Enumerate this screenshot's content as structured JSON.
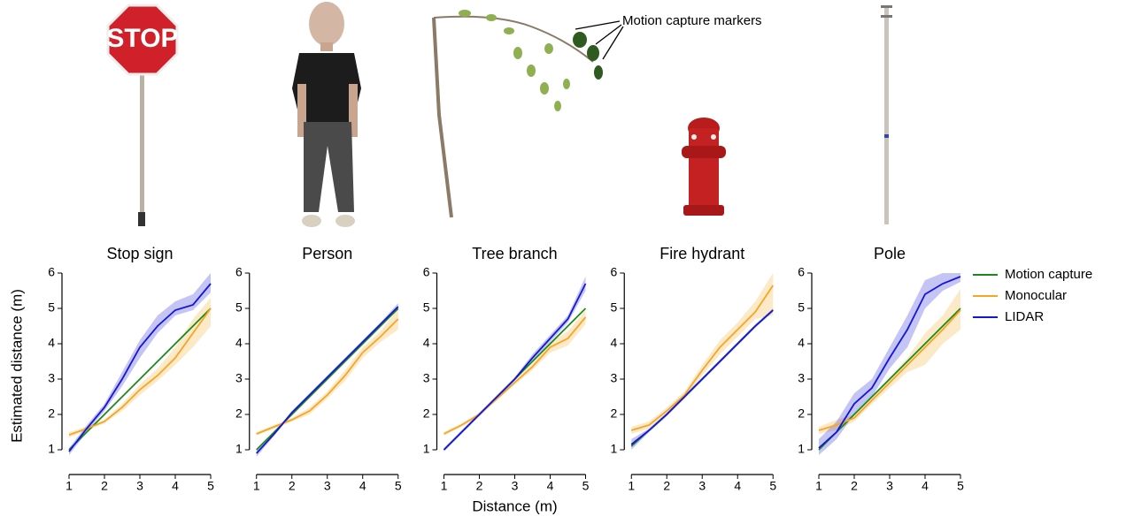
{
  "images": {
    "stop_sign_label": "STOP",
    "annotation": "Motion capture markers"
  },
  "chart_data": [
    {
      "type": "line",
      "title": "Stop sign",
      "y_label": "Estimated distance (m)",
      "x": [
        1,
        1.5,
        2,
        2.5,
        3,
        3.5,
        4,
        4.5,
        5
      ],
      "xlim": [
        1,
        5
      ],
      "ylim": [
        1,
        6
      ],
      "xticks": [
        1,
        2,
        3,
        4,
        5
      ],
      "yticks": [
        1,
        2,
        3,
        4,
        5,
        6
      ],
      "series": [
        {
          "name": "Motion capture",
          "color": "#1a8a1a",
          "values": [
            1,
            1.5,
            2,
            2.5,
            3,
            3.5,
            4,
            4.5,
            5
          ]
        },
        {
          "name": "Monocular",
          "color": "#f5a623",
          "values": [
            1.42,
            1.6,
            1.8,
            2.2,
            2.7,
            3.1,
            3.6,
            4.3,
            5.0
          ],
          "lower": [
            1.35,
            1.55,
            1.75,
            2.1,
            2.55,
            2.95,
            3.4,
            3.9,
            4.5
          ],
          "upper": [
            1.5,
            1.65,
            1.85,
            2.3,
            2.85,
            3.3,
            3.9,
            4.7,
            5.3
          ]
        },
        {
          "name": "LIDAR",
          "color": "#1515d6",
          "values": [
            0.95,
            1.6,
            2.2,
            3.0,
            3.9,
            4.5,
            4.95,
            5.1,
            5.7
          ],
          "lower": [
            0.85,
            1.5,
            2.1,
            2.8,
            3.6,
            4.3,
            4.8,
            4.95,
            5.45
          ],
          "upper": [
            1.05,
            1.7,
            2.3,
            3.2,
            4.1,
            4.8,
            5.2,
            5.4,
            6.0
          ]
        }
      ]
    },
    {
      "type": "line",
      "title": "Person",
      "x": [
        1,
        1.5,
        2,
        2.5,
        3,
        3.5,
        4,
        4.5,
        5
      ],
      "xlim": [
        1,
        5
      ],
      "ylim": [
        1,
        6
      ],
      "xticks": [
        1,
        2,
        3,
        4,
        5
      ],
      "yticks": [
        1,
        2,
        3,
        4,
        5,
        6
      ],
      "series": [
        {
          "name": "Motion capture",
          "color": "#1a8a1a",
          "values": [
            1,
            1.5,
            2,
            2.5,
            3,
            3.5,
            4,
            4.5,
            5
          ]
        },
        {
          "name": "Monocular",
          "color": "#f5a623",
          "values": [
            1.45,
            1.65,
            1.85,
            2.1,
            2.55,
            3.1,
            3.75,
            4.2,
            4.7
          ],
          "lower": [
            1.4,
            1.6,
            1.8,
            2.0,
            2.45,
            2.95,
            3.6,
            4.05,
            4.4
          ],
          "upper": [
            1.5,
            1.7,
            1.9,
            2.2,
            2.65,
            3.25,
            3.9,
            4.35,
            5.0
          ]
        },
        {
          "name": "LIDAR",
          "color": "#1515d6",
          "values": [
            0.9,
            1.45,
            2.05,
            2.55,
            3.05,
            3.55,
            4.05,
            4.55,
            5.05
          ],
          "lower": [
            0.8,
            1.4,
            2.0,
            2.5,
            3.0,
            3.5,
            4.0,
            4.5,
            4.95
          ],
          "upper": [
            1.0,
            1.5,
            2.1,
            2.6,
            3.1,
            3.6,
            4.1,
            4.6,
            5.15
          ]
        }
      ]
    },
    {
      "type": "line",
      "title": "Tree branch",
      "x_label": "Distance (m)",
      "x": [
        1,
        1.5,
        2,
        2.5,
        3,
        3.5,
        4,
        4.5,
        5
      ],
      "xlim": [
        1,
        5
      ],
      "ylim": [
        1,
        6
      ],
      "xticks": [
        1,
        2,
        3,
        4,
        5
      ],
      "yticks": [
        1,
        2,
        3,
        4,
        5,
        6
      ],
      "series": [
        {
          "name": "Motion capture",
          "color": "#1a8a1a",
          "values": [
            1,
            1.5,
            2,
            2.5,
            3,
            3.5,
            4,
            4.5,
            5
          ]
        },
        {
          "name": "Monocular",
          "color": "#f5a623",
          "values": [
            1.45,
            1.7,
            2.0,
            2.45,
            2.9,
            3.35,
            3.9,
            4.15,
            4.75
          ],
          "lower": [
            1.4,
            1.65,
            1.95,
            2.4,
            2.85,
            3.25,
            3.75,
            3.95,
            4.55
          ],
          "upper": [
            1.5,
            1.75,
            2.05,
            2.5,
            2.95,
            3.45,
            4.05,
            4.35,
            4.95
          ]
        },
        {
          "name": "LIDAR",
          "color": "#1515d6",
          "values": [
            1.0,
            1.5,
            2.0,
            2.5,
            3.0,
            3.6,
            4.15,
            4.7,
            5.7
          ],
          "lower": [
            0.95,
            1.45,
            1.95,
            2.45,
            2.95,
            3.5,
            4.05,
            4.6,
            5.5
          ],
          "upper": [
            1.05,
            1.55,
            2.05,
            2.55,
            3.05,
            3.7,
            4.25,
            4.8,
            5.9
          ]
        }
      ]
    },
    {
      "type": "line",
      "title": "Fire hydrant",
      "x": [
        1,
        1.5,
        2,
        2.5,
        3,
        3.5,
        4,
        4.5,
        5
      ],
      "xlim": [
        1,
        5
      ],
      "ylim": [
        1,
        6
      ],
      "xticks": [
        1,
        2,
        3,
        4,
        5
      ],
      "yticks": [
        1,
        2,
        3,
        4,
        5,
        6
      ],
      "series": [
        {
          "name": "Motion capture",
          "color": "#1a8a1a",
          "values": [
            1.1,
            1.55,
            2,
            2.5,
            3,
            3.5,
            4,
            4.5,
            4.95
          ]
        },
        {
          "name": "Monocular",
          "color": "#f5a623",
          "values": [
            1.55,
            1.7,
            2.1,
            2.55,
            3.25,
            3.9,
            4.4,
            4.9,
            5.65
          ],
          "lower": [
            1.45,
            1.6,
            2.0,
            2.45,
            3.1,
            3.7,
            4.2,
            4.7,
            4.8
          ],
          "upper": [
            1.65,
            1.8,
            2.2,
            2.65,
            3.4,
            4.1,
            4.6,
            5.2,
            6.0
          ]
        },
        {
          "name": "LIDAR",
          "color": "#1515d6",
          "values": [
            1.15,
            1.55,
            2.0,
            2.5,
            3.0,
            3.5,
            4.0,
            4.5,
            4.95
          ],
          "lower": [
            1.0,
            1.5,
            1.95,
            2.45,
            2.95,
            3.45,
            3.95,
            4.45,
            4.9
          ],
          "upper": [
            1.3,
            1.6,
            2.05,
            2.55,
            3.05,
            3.55,
            4.05,
            4.55,
            5.0
          ]
        }
      ]
    },
    {
      "type": "line",
      "title": "Pole",
      "legend": "right",
      "x": [
        1,
        1.5,
        2,
        2.5,
        3,
        3.5,
        4,
        4.5,
        5
      ],
      "xlim": [
        1,
        5
      ],
      "ylim": [
        1,
        6
      ],
      "xticks": [
        1,
        2,
        3,
        4,
        5
      ],
      "yticks": [
        1,
        2,
        3,
        4,
        5,
        6
      ],
      "series": [
        {
          "name": "Motion capture",
          "color": "#1a8a1a",
          "values": [
            1,
            1.5,
            2,
            2.5,
            3,
            3.5,
            4,
            4.5,
            5
          ]
        },
        {
          "name": "Monocular",
          "color": "#f5a623",
          "values": [
            1.55,
            1.7,
            1.9,
            2.4,
            2.9,
            3.4,
            3.9,
            4.4,
            4.95
          ],
          "lower": [
            1.45,
            1.55,
            1.8,
            2.3,
            2.75,
            3.2,
            3.4,
            4.0,
            4.4
          ],
          "upper": [
            1.65,
            1.85,
            2.0,
            2.5,
            3.05,
            3.6,
            4.3,
            4.8,
            5.55
          ]
        },
        {
          "name": "LIDAR",
          "color": "#1515d6",
          "values": [
            1.05,
            1.5,
            2.3,
            2.75,
            3.6,
            4.4,
            5.4,
            5.7,
            5.9
          ],
          "lower": [
            0.85,
            1.3,
            2.0,
            2.5,
            3.3,
            3.9,
            5.0,
            5.5,
            5.75
          ],
          "upper": [
            1.3,
            1.8,
            2.6,
            3.0,
            3.9,
            4.8,
            5.8,
            6.0,
            6.0
          ]
        }
      ]
    }
  ]
}
